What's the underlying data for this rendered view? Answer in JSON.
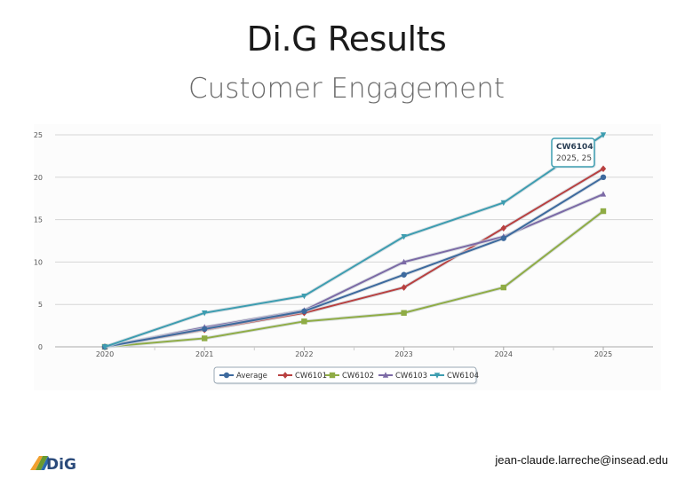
{
  "page": {
    "title": "Di.G Results",
    "subtitle": "Customer Engagement",
    "email": "jean-claude.larreche@insead.edu",
    "logo_text": "DiG"
  },
  "chart_data": {
    "type": "line",
    "title": "",
    "xlabel": "",
    "ylabel": "",
    "x": [
      "2020",
      "2021",
      "2022",
      "2023",
      "2024",
      "2025"
    ],
    "y_ticks": [
      "0",
      "5",
      "10",
      "15",
      "20",
      "25"
    ],
    "ylim": [
      0,
      25
    ],
    "grid": true,
    "legend_position": "bottom",
    "series": [
      {
        "name": "Average",
        "color": "#3d6a9e",
        "marker": "circle",
        "values": [
          0,
          2.1,
          4.2,
          8.5,
          12.8,
          20
        ]
      },
      {
        "name": "CW6101",
        "color": "#b84040",
        "marker": "diamond",
        "values": [
          0,
          2.0,
          4.0,
          7.0,
          14.0,
          21
        ]
      },
      {
        "name": "CW6102",
        "color": "#8fac45",
        "marker": "square",
        "values": [
          0,
          1.0,
          3.0,
          4.0,
          7.0,
          16
        ]
      },
      {
        "name": "CW6103",
        "color": "#7c6aa6",
        "marker": "triangle",
        "values": [
          0,
          2.3,
          4.3,
          10.0,
          13.0,
          18
        ]
      },
      {
        "name": "CW6104",
        "color": "#3d9db0",
        "marker": "triangle-down",
        "values": [
          0,
          4.0,
          6.0,
          13.0,
          17.0,
          25
        ]
      }
    ],
    "tooltip": {
      "series": "CW6104",
      "text": "2025, 25"
    }
  }
}
